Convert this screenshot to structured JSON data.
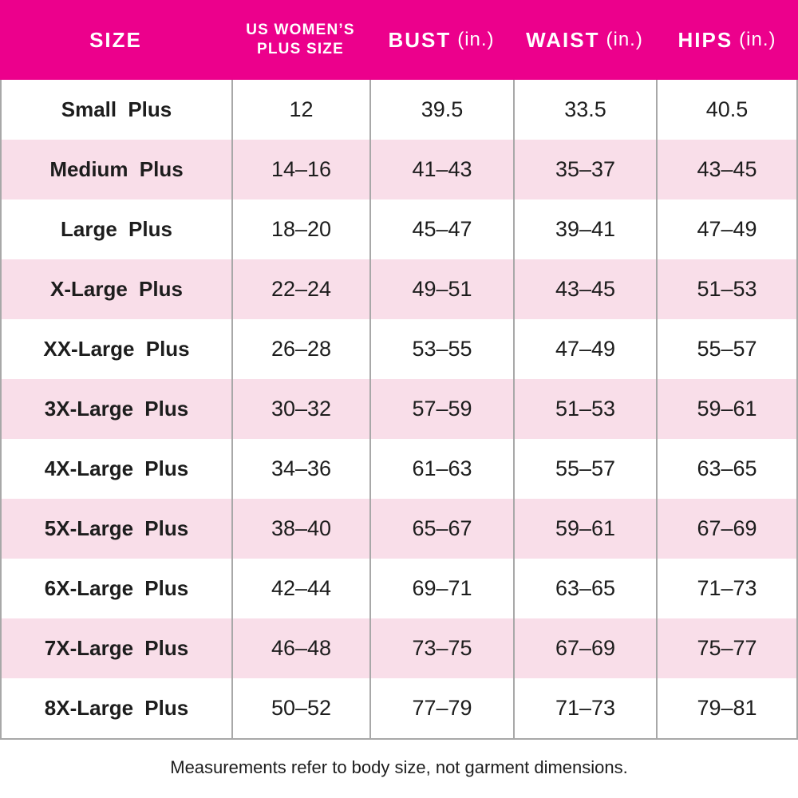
{
  "colors": {
    "header_bg": "#EC008C",
    "header_text": "#FFFFFF",
    "row_bg": "#FFFFFF",
    "row_alt_bg": "#F9DEE9",
    "border": "#A8A8A8",
    "text": "#1D1D1D"
  },
  "header": {
    "size": "SIZE",
    "us_line1": "US WOMEN’S",
    "us_line2": "PLUS SIZE",
    "bust": "BUST",
    "waist": "WAIST",
    "hips": "HIPS",
    "unit": "(in.)"
  },
  "footer": {
    "note": "Measurements refer to body size, not garment dimensions."
  },
  "chart_data": {
    "type": "table",
    "title": "US Women's plus size chart",
    "columns": [
      "SIZE",
      "US WOMEN'S PLUS SIZE",
      "BUST (in.)",
      "WAIST (in.)",
      "HIPS (in.)"
    ],
    "rows": [
      [
        "Small Plus",
        "12",
        "39.5",
        "33.5",
        "40.5"
      ],
      [
        "Medium Plus",
        "14–16",
        "41–43",
        "35–37",
        "43–45"
      ],
      [
        "Large Plus",
        "18–20",
        "45–47",
        "39–41",
        "47–49"
      ],
      [
        "X-Large Plus",
        "22–24",
        "49–51",
        "43–45",
        "51–53"
      ],
      [
        "XX-Large Plus",
        "26–28",
        "53–55",
        "47–49",
        "55–57"
      ],
      [
        "3X-Large Plus",
        "30–32",
        "57–59",
        "51–53",
        "59–61"
      ],
      [
        "4X-Large Plus",
        "34–36",
        "61–63",
        "55–57",
        "63–65"
      ],
      [
        "5X-Large Plus",
        "38–40",
        "65–67",
        "59–61",
        "67–69"
      ],
      [
        "6X-Large Plus",
        "42–44",
        "69–71",
        "63–65",
        "71–73"
      ],
      [
        "7X-Large Plus",
        "46–48",
        "73–75",
        "67–69",
        "75–77"
      ],
      [
        "8X-Large Plus",
        "50–52",
        "77–79",
        "71–73",
        "79–81"
      ]
    ],
    "footnote": "Measurements refer to body size, not garment dimensions.",
    "layout": {
      "alternating_row_colors": true,
      "gridlines": "vertical-only",
      "header_style": "magenta-banner"
    }
  }
}
